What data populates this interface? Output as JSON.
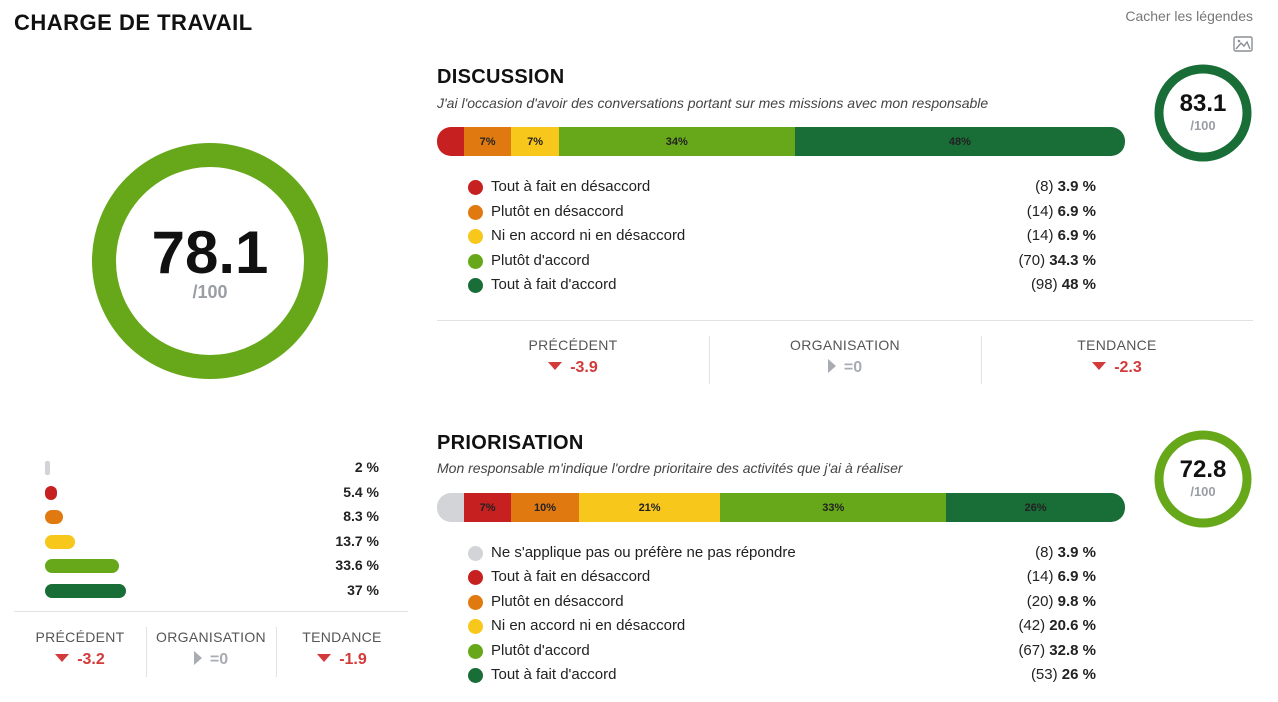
{
  "page": {
    "title": "CHARGE DE TRAVAIL",
    "hide_legends": "Cacher les légendes",
    "image_icon": "image-icon"
  },
  "colors": {
    "na": "#d2d4d7",
    "d1": "#c62020",
    "d2": "#e07a10",
    "d3": "#f7c81b",
    "d4": "#66a81a",
    "d5": "#196d36"
  },
  "overall": {
    "score": "78.1",
    "score_value": 78.1,
    "denominator": "/100",
    "gauge_color": "#66a81a",
    "distribution": [
      {
        "value": "2 %",
        "fraction": 0.02,
        "color": "#d2d4d7"
      },
      {
        "value": "5.4 %",
        "fraction": 0.054,
        "color": "#c62020"
      },
      {
        "value": "8.3 %",
        "fraction": 0.083,
        "color": "#e07a10"
      },
      {
        "value": "13.7 %",
        "fraction": 0.137,
        "color": "#f7c81b"
      },
      {
        "value": "33.6 %",
        "fraction": 0.336,
        "color": "#66a81a"
      },
      {
        "value": "37 %",
        "fraction": 0.37,
        "color": "#196d36"
      }
    ],
    "metrics": [
      {
        "label": "PRÉCÉDENT",
        "value": "-3.2",
        "trend": "down"
      },
      {
        "label": "ORGANISATION",
        "value": "=0",
        "trend": "neutral"
      },
      {
        "label": "TENDANCE",
        "value": "-1.9",
        "trend": "down"
      }
    ]
  },
  "questions": [
    {
      "title": "DISCUSSION",
      "subtitle": "J'ai l'occasion d'avoir des conversations portant sur mes missions avec mon responsable",
      "score": "83.1",
      "score_value": 83.1,
      "denominator": "/100",
      "gauge_color": "#196d36",
      "segments": [
        {
          "label": "",
          "fraction": 0.039,
          "color": "#c62020"
        },
        {
          "label": "7%",
          "fraction": 0.069,
          "color": "#e07a10"
        },
        {
          "label": "7%",
          "fraction": 0.069,
          "color": "#f7c81b"
        },
        {
          "label": "34%",
          "fraction": 0.343,
          "color": "#66a81a"
        },
        {
          "label": "48%",
          "fraction": 0.48,
          "color": "#196d36"
        }
      ],
      "legend": [
        {
          "label": "Tout à fait en désaccord",
          "count": "(8)",
          "percent": "3.9 %",
          "color": "#c62020"
        },
        {
          "label": "Plutôt en désaccord",
          "count": "(14)",
          "percent": "6.9 %",
          "color": "#e07a10"
        },
        {
          "label": "Ni en accord ni en désaccord",
          "count": "(14)",
          "percent": "6.9 %",
          "color": "#f7c81b"
        },
        {
          "label": "Plutôt d'accord",
          "count": "(70)",
          "percent": "34.3 %",
          "color": "#66a81a"
        },
        {
          "label": "Tout à fait d'accord",
          "count": "(98)",
          "percent": "48 %",
          "color": "#196d36"
        }
      ],
      "metrics": [
        {
          "label": "PRÉCÉDENT",
          "value": "-3.9",
          "trend": "down"
        },
        {
          "label": "ORGANISATION",
          "value": "=0",
          "trend": "neutral"
        },
        {
          "label": "TENDANCE",
          "value": "-2.3",
          "trend": "down"
        }
      ]
    },
    {
      "title": "PRIORISATION",
      "subtitle": "Mon responsable m'indique l'ordre prioritaire des activités que j'ai à réaliser",
      "score": "72.8",
      "score_value": 72.8,
      "denominator": "/100",
      "gauge_color": "#66a81a",
      "segments": [
        {
          "label": "",
          "fraction": 0.039,
          "color": "#d2d4d7"
        },
        {
          "label": "7%",
          "fraction": 0.069,
          "color": "#c62020"
        },
        {
          "label": "10%",
          "fraction": 0.098,
          "color": "#e07a10"
        },
        {
          "label": "21%",
          "fraction": 0.206,
          "color": "#f7c81b"
        },
        {
          "label": "33%",
          "fraction": 0.328,
          "color": "#66a81a"
        },
        {
          "label": "26%",
          "fraction": 0.26,
          "color": "#196d36"
        }
      ],
      "legend": [
        {
          "label": "Ne s'applique pas ou préfère ne pas répondre",
          "count": "(8)",
          "percent": "3.9 %",
          "color": "#d2d4d7"
        },
        {
          "label": "Tout à fait en désaccord",
          "count": "(14)",
          "percent": "6.9 %",
          "color": "#c62020"
        },
        {
          "label": "Plutôt en désaccord",
          "count": "(20)",
          "percent": "9.8 %",
          "color": "#e07a10"
        },
        {
          "label": "Ni en accord ni en désaccord",
          "count": "(42)",
          "percent": "20.6 %",
          "color": "#f7c81b"
        },
        {
          "label": "Plutôt d'accord",
          "count": "(67)",
          "percent": "32.8 %",
          "color": "#66a81a"
        },
        {
          "label": "Tout à fait d'accord",
          "count": "(53)",
          "percent": "26 %",
          "color": "#196d36"
        }
      ]
    }
  ]
}
